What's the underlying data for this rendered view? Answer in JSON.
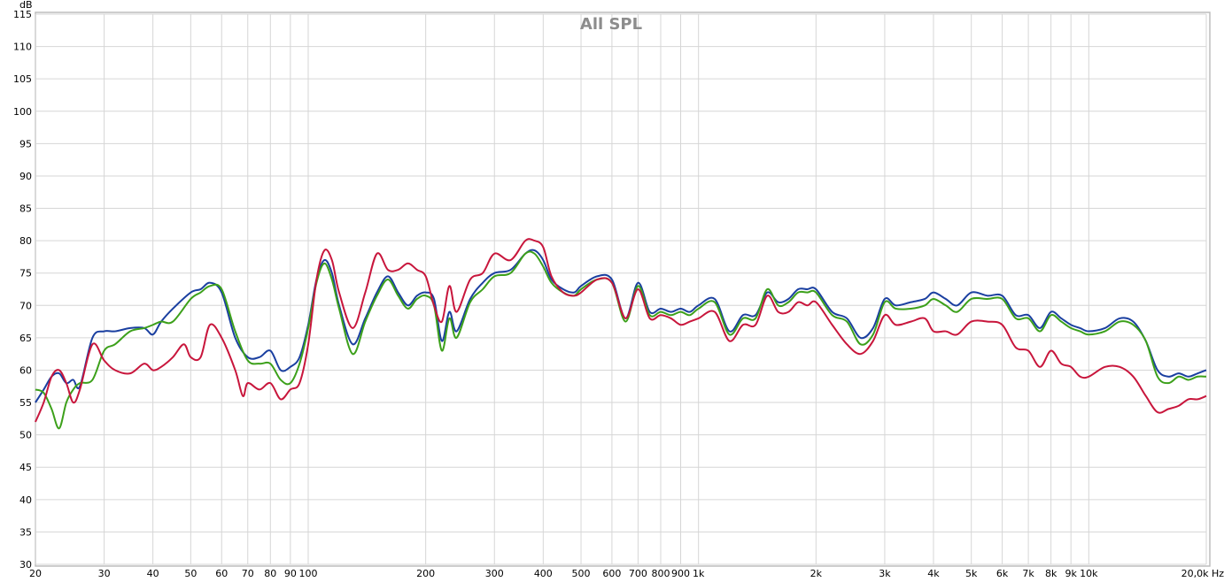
{
  "chart_data": {
    "type": "line",
    "title": "All SPL",
    "ylabel": "dB",
    "xlabel": "Hz",
    "x_scale": "log",
    "xlim": [
      20,
      20000
    ],
    "ylim": [
      30,
      115
    ],
    "grid": true,
    "y_ticks": [
      30,
      35,
      40,
      45,
      50,
      55,
      60,
      65,
      70,
      75,
      80,
      85,
      90,
      95,
      100,
      105,
      110,
      115
    ],
    "y_tick_labels": [
      "30",
      "35",
      "40",
      "45",
      "50",
      "55",
      "60",
      "65",
      "70",
      "75",
      "80",
      "85",
      "90",
      "95",
      "100",
      "105",
      "110",
      "115"
    ],
    "x_ticks": [
      20,
      30,
      40,
      50,
      60,
      70,
      80,
      90,
      100,
      200,
      300,
      400,
      500,
      600,
      700,
      800,
      900,
      1000,
      2000,
      3000,
      4000,
      5000,
      6000,
      7000,
      8000,
      9000,
      10000,
      20000
    ],
    "x_tick_labels": [
      "20",
      "30",
      "40",
      "50",
      "60",
      "70",
      "80",
      "90",
      "100",
      "200",
      "300",
      "400",
      "500",
      "600",
      "700",
      "800",
      "900",
      "1k",
      "2k",
      "3k",
      "4k",
      "5k",
      "6k",
      "7k",
      "8k",
      "9k",
      "10k",
      "20,0k Hz"
    ],
    "series": [
      {
        "color": "#1a3fa0",
        "x": [
          20,
          21,
          22,
          23,
          24,
          25,
          26,
          28,
          30,
          32,
          35,
          38,
          40,
          42,
          45,
          50,
          53,
          56,
          60,
          65,
          70,
          75,
          80,
          85,
          90,
          95,
          100,
          105,
          110,
          115,
          120,
          130,
          140,
          150,
          160,
          170,
          180,
          190,
          200,
          210,
          220,
          230,
          240,
          260,
          280,
          300,
          330,
          360,
          380,
          400,
          420,
          450,
          480,
          500,
          550,
          600,
          650,
          700,
          750,
          800,
          850,
          900,
          950,
          1000,
          1100,
          1200,
          1300,
          1400,
          1500,
          1600,
          1700,
          1800,
          1900,
          2000,
          2200,
          2400,
          2600,
          2800,
          3000,
          3200,
          3500,
          3800,
          4000,
          4300,
          4600,
          5000,
          5500,
          6000,
          6500,
          7000,
          7500,
          8000,
          8500,
          9000,
          9500,
          10000,
          11000,
          12000,
          13000,
          14000,
          15000,
          16000,
          17000,
          18000,
          19000,
          20000
        ],
        "y": [
          55,
          57,
          59,
          59.5,
          58,
          58.5,
          57.5,
          65,
          66,
          66,
          66.5,
          66.5,
          65.5,
          67.5,
          69.5,
          72,
          72.5,
          73.5,
          72,
          65,
          62,
          62,
          63,
          60,
          60.5,
          62,
          67,
          74,
          77,
          75,
          70,
          64,
          68,
          72,
          74.5,
          72,
          70,
          71.5,
          72,
          71,
          64.5,
          69,
          66,
          71,
          73.5,
          75,
          75.5,
          78,
          78.5,
          77,
          74,
          72.5,
          72,
          73,
          74.5,
          74,
          68,
          73.5,
          69,
          69.5,
          69,
          69.5,
          69,
          70,
          71,
          66,
          68.5,
          68.5,
          72,
          70.5,
          71,
          72.5,
          72.5,
          72.5,
          69,
          68,
          65,
          66.5,
          71,
          70,
          70.5,
          71,
          72,
          71,
          70,
          72,
          71.5,
          71.5,
          68.5,
          68.5,
          66.5,
          69,
          68,
          67,
          66.5,
          66,
          66.5,
          68,
          67.5,
          64.5,
          60,
          59,
          59.5,
          59,
          59.5,
          60
        ]
      },
      {
        "color": "#3ca01a",
        "x": [
          20,
          21,
          22,
          23,
          24,
          25,
          26,
          28,
          30,
          32,
          35,
          38,
          40,
          42,
          45,
          50,
          53,
          56,
          60,
          65,
          70,
          75,
          80,
          85,
          90,
          95,
          100,
          105,
          110,
          115,
          120,
          130,
          140,
          150,
          160,
          170,
          180,
          190,
          200,
          210,
          220,
          230,
          240,
          260,
          280,
          300,
          330,
          360,
          380,
          400,
          420,
          450,
          480,
          500,
          550,
          600,
          650,
          700,
          750,
          800,
          850,
          900,
          950,
          1000,
          1100,
          1200,
          1300,
          1400,
          1500,
          1600,
          1700,
          1800,
          1900,
          2000,
          2200,
          2400,
          2600,
          2800,
          3000,
          3200,
          3500,
          3800,
          4000,
          4300,
          4600,
          5000,
          5500,
          6000,
          6500,
          7000,
          7500,
          8000,
          8500,
          9000,
          9500,
          10000,
          11000,
          12000,
          13000,
          14000,
          15000,
          16000,
          17000,
          18000,
          19000,
          20000
        ],
        "y": [
          57,
          56.5,
          54,
          51,
          55,
          57,
          58,
          58.5,
          63,
          64,
          66,
          66.5,
          67,
          67.5,
          67.5,
          71,
          72,
          73,
          72.5,
          66,
          61.5,
          61,
          61,
          58.5,
          58,
          61,
          66.5,
          73.5,
          76.5,
          74,
          69.5,
          62.5,
          67.5,
          71.5,
          74,
          71.5,
          69.5,
          71,
          71.5,
          70,
          63,
          68,
          65,
          70.5,
          72.5,
          74.5,
          75,
          78,
          78,
          76,
          73.5,
          72,
          71.5,
          72.5,
          74,
          73.5,
          67.5,
          73,
          68.5,
          69,
          68.5,
          69,
          68.5,
          69.5,
          70.5,
          65.5,
          68,
          68,
          72.5,
          70,
          70.5,
          72,
          72,
          72,
          68.5,
          67.5,
          64,
          65.5,
          70.5,
          69.5,
          69.5,
          70,
          71,
          70,
          69,
          71,
          71,
          71,
          68,
          68,
          66,
          68.5,
          67.5,
          66.5,
          66,
          65.5,
          66,
          67.5,
          67,
          64.5,
          59,
          58,
          59,
          58.5,
          59,
          59
        ]
      },
      {
        "color": "#c8163c",
        "x": [
          20,
          21,
          22,
          23,
          24,
          25,
          26,
          28,
          30,
          32,
          35,
          38,
          40,
          42,
          45,
          48,
          50,
          53,
          56,
          60,
          65,
          68,
          70,
          75,
          80,
          85,
          90,
          95,
          100,
          105,
          110,
          115,
          120,
          130,
          140,
          150,
          160,
          170,
          180,
          190,
          200,
          210,
          220,
          230,
          240,
          260,
          280,
          300,
          330,
          360,
          380,
          400,
          420,
          450,
          480,
          500,
          550,
          600,
          650,
          700,
          750,
          800,
          850,
          900,
          950,
          1000,
          1100,
          1200,
          1300,
          1400,
          1500,
          1600,
          1700,
          1800,
          1900,
          2000,
          2200,
          2400,
          2600,
          2800,
          3000,
          3200,
          3500,
          3800,
          4000,
          4300,
          4600,
          5000,
          5500,
          6000,
          6500,
          7000,
          7500,
          8000,
          8500,
          9000,
          9500,
          10000,
          11000,
          12000,
          13000,
          14000,
          15000,
          16000,
          17000,
          18000,
          19000,
          20000
        ],
        "y": [
          52,
          55,
          59,
          60,
          58,
          55,
          57,
          64,
          61.5,
          60,
          59.5,
          61,
          60,
          60.5,
          62,
          64,
          62,
          62,
          67,
          65,
          60,
          56,
          58,
          57,
          58,
          55.5,
          57,
          58,
          64,
          74,
          78.5,
          77,
          72,
          66.5,
          72,
          78,
          75.5,
          75.5,
          76.5,
          75.5,
          74.5,
          70,
          67.5,
          73,
          69,
          74,
          75,
          78,
          77,
          80,
          80,
          79,
          74.5,
          72,
          71.5,
          72,
          74,
          73.5,
          68,
          72.5,
          68,
          68.5,
          68,
          67,
          67.5,
          68,
          69,
          64.5,
          67,
          67,
          71.5,
          69,
          69,
          70.5,
          70,
          70.5,
          67,
          64,
          62.5,
          64.5,
          68.5,
          67,
          67.5,
          68,
          66,
          66,
          65.5,
          67.5,
          67.5,
          67,
          63.5,
          63,
          60.5,
          63,
          61,
          60.5,
          59,
          59,
          60.5,
          60.5,
          59,
          56,
          53.5,
          54,
          54.5,
          55.5,
          55.5,
          56
        ]
      }
    ]
  }
}
